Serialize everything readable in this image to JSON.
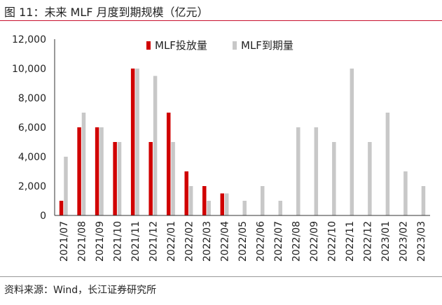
{
  "title": "图 11：未来 MLF 月度到期规模（亿元）",
  "source": "资料来源：Wind，长江证券研究所",
  "colors": {
    "issuance": "#d00000",
    "maturity": "#c8c8c8",
    "accent": "#c8102e"
  },
  "chart_data": {
    "type": "bar",
    "title": "未来 MLF 月度到期规模（亿元）",
    "xlabel": "",
    "ylabel": "",
    "ylim": [
      0,
      12000
    ],
    "yticks": [
      0,
      2000,
      4000,
      6000,
      8000,
      10000,
      12000
    ],
    "ytick_labels": [
      "0",
      "2,000",
      "4,000",
      "6,000",
      "8,000",
      "10,000",
      "12,000"
    ],
    "legend_position": "top-right",
    "categories": [
      "2021/07",
      "2021/08",
      "2021/09",
      "2021/10",
      "2021/11",
      "2021/12",
      "2022/01",
      "2022/02",
      "2022/03",
      "2022/04",
      "2022/05",
      "2022/06",
      "2022/07",
      "2022/08",
      "2022/09",
      "2022/10",
      "2022/11",
      "2022/12",
      "2023/01",
      "2023/02",
      "2023/03"
    ],
    "series": [
      {
        "name": "MLF投放量",
        "values": [
          1000,
          6000,
          6000,
          5000,
          10000,
          5000,
          7000,
          3000,
          2000,
          1500,
          0,
          0,
          0,
          0,
          0,
          0,
          0,
          0,
          0,
          0,
          0
        ]
      },
      {
        "name": "MLF到期量",
        "values": [
          4000,
          7000,
          6000,
          5000,
          10000,
          9500,
          5000,
          2000,
          1000,
          1500,
          1000,
          2000,
          1000,
          6000,
          6000,
          5000,
          10000,
          5000,
          7000,
          3000,
          2000
        ]
      }
    ]
  }
}
